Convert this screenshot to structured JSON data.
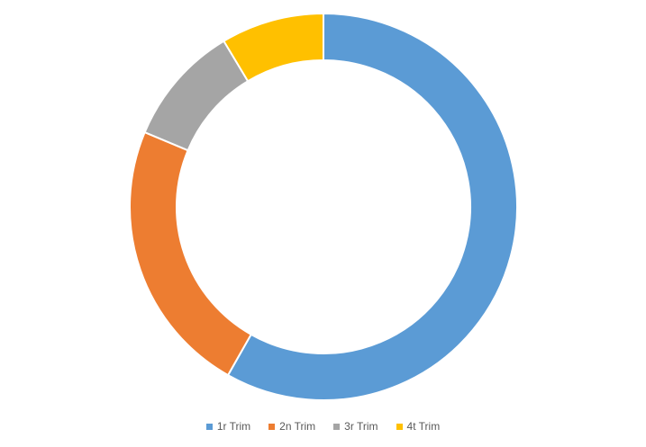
{
  "chart_data": {
    "type": "pie",
    "variant": "doughnut",
    "title": "",
    "categories": [
      "1r Trim",
      "2n Trim",
      "3r Trim",
      "4t Trim"
    ],
    "values": [
      58.2,
      23.1,
      10.1,
      8.6
    ],
    "colors": [
      "#5B9BD5",
      "#ED7D31",
      "#A5A5A5",
      "#FFC000"
    ],
    "start_angle_deg": 0,
    "direction": "clockwise",
    "legend": "bottom",
    "data_labels": false
  }
}
